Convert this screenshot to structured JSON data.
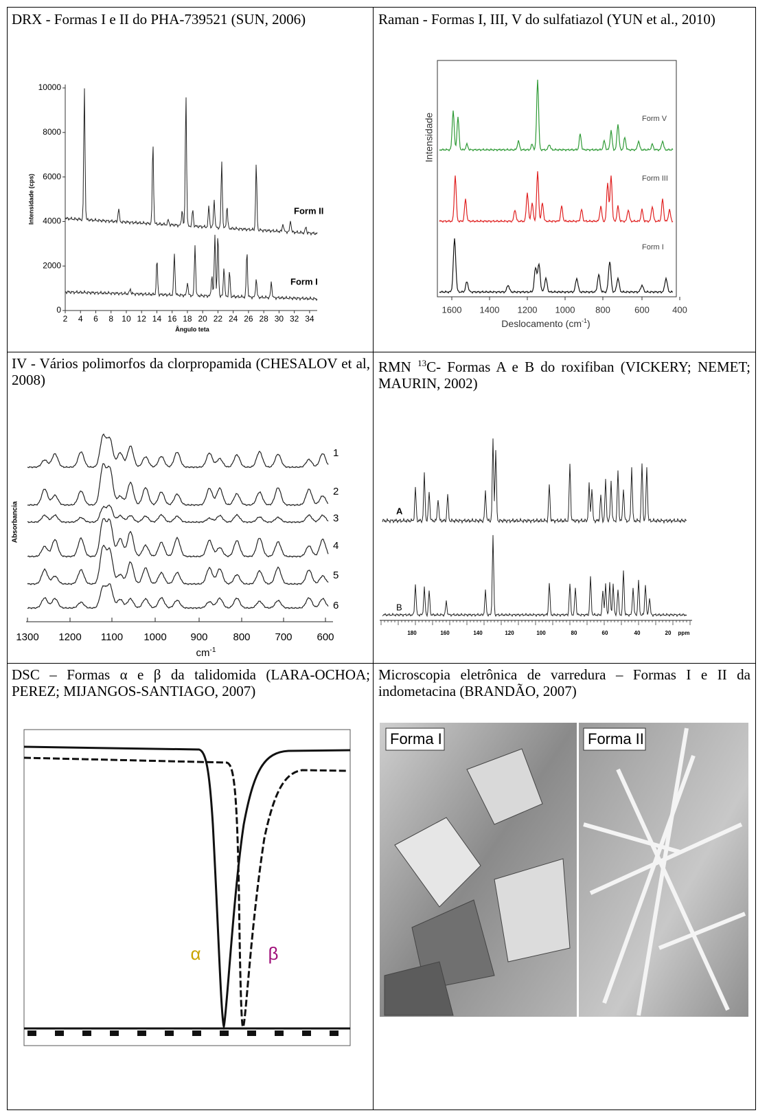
{
  "cells": [
    {
      "caption": "DRX - Formas I e II do PHA-739521 (SUN, 2006)",
      "ylabel": "Intensidade (cps)",
      "xlabel": "Ângulo teta",
      "yticks": [
        "0",
        "2000",
        "4000",
        "6000",
        "8000",
        "10000"
      ],
      "xticks": [
        "2",
        "4",
        "6",
        "8",
        "10",
        "12",
        "14",
        "16",
        "18",
        "20",
        "22",
        "24",
        "26",
        "28",
        "30",
        "32",
        "34"
      ],
      "traces": [
        "Form II",
        "Form I"
      ]
    },
    {
      "caption": "Raman - Formas I, III, V do sulfatiazol (YUN et al., 2010)",
      "ylabel": "Intensidade",
      "xlabel": "Deslocamento (cm",
      "xlabel_sup": "-1",
      "xlabel_end": ")",
      "xticks": [
        "1600",
        "1400",
        "1200",
        "1000",
        "800",
        "600",
        "400"
      ],
      "traces": [
        "Form V",
        "Form III",
        "Form I"
      ]
    },
    {
      "caption": "IV - Vários polimorfos da clorpropamida (CHESALOV et al, 2008)",
      "ylabel": "Absorbancia",
      "xlabel": "cm",
      "xlabel_sup": "-1",
      "xticks": [
        "1300",
        "1200",
        "1100",
        "1000",
        "900",
        "800",
        "700",
        "600"
      ],
      "traces": [
        "1",
        "2",
        "3",
        "4",
        "5",
        "6"
      ]
    },
    {
      "caption_prefix": "RMN ",
      "caption_sup": "13",
      "caption": "C- Formas A e B do roxifiban (VICKERY; NEMET; MAURIN, 2002)",
      "xticks": [
        "180",
        "160",
        "140",
        "120",
        "100",
        "80",
        "60",
        "40",
        "20"
      ],
      "xlabel": "ppm",
      "traces": [
        "A",
        "B"
      ]
    },
    {
      "caption": "DSC – Formas α e β da talidomida (LARA-OCHOA; PEREZ; MIJANGOS-SANTIAGO, 2007)",
      "traces": [
        "α",
        "β"
      ]
    },
    {
      "caption": "Microscopia eletrônica de varredura – Formas I e II da indometacina (BRANDÃO, 2007)",
      "panels": [
        "Forma I",
        "Forma II"
      ]
    }
  ]
}
